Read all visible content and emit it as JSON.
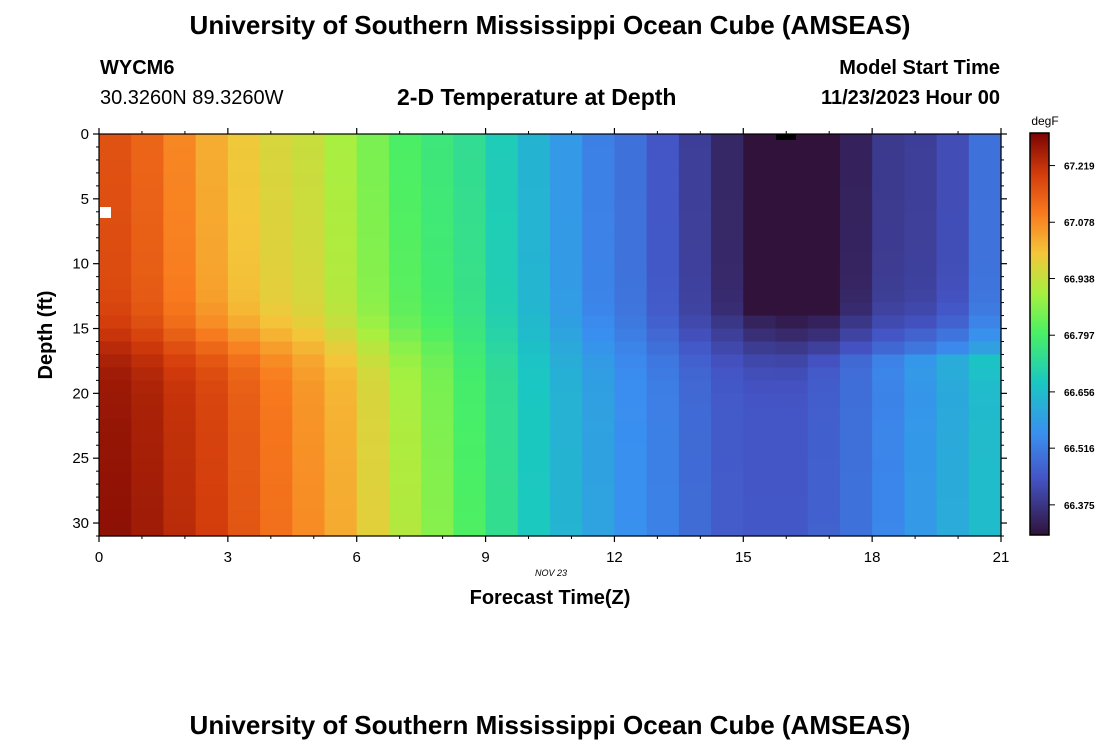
{
  "header": {
    "title": "University of Southern Mississippi Ocean Cube (AMSEAS)",
    "station_id": "WYCM6",
    "coords": "30.3260N  89.3260W",
    "plot_title": "2-D Temperature at Depth",
    "model_start_label": "Model Start Time",
    "model_start_value": "11/23/2023 Hour 00"
  },
  "footer": {
    "title": "University of Southern Mississippi Ocean Cube (AMSEAS)"
  },
  "chart_data": {
    "type": "heatmap",
    "title": "2-D Temperature at Depth",
    "xlabel": "Forecast Time(Z)",
    "ylabel": "Depth (ft)",
    "date_label": "NOV 23",
    "x_ticks": [
      0,
      3,
      6,
      9,
      12,
      15,
      18,
      21
    ],
    "y_ticks": [
      0,
      5,
      10,
      15,
      20,
      25,
      30
    ],
    "xlim": [
      0,
      21
    ],
    "ylim": [
      0,
      31
    ],
    "unit": "degF",
    "colorbar_ticks": [
      "67.219",
      "67.078",
      "66.938",
      "66.797",
      "66.656",
      "66.516",
      "66.375"
    ],
    "vmin": 66.3,
    "vmax": 67.3,
    "columns": 28,
    "rows": 31,
    "profile_time_hours": [
      0,
      0.75,
      1.5,
      2.25,
      3,
      3.75,
      4.5,
      5.25,
      6,
      6.75,
      7.5,
      8.25,
      9,
      9.75,
      10.5,
      11.25,
      12,
      12.75,
      13.5,
      14.25,
      15,
      15.75,
      16.5,
      17.25,
      18,
      18.75,
      19.5,
      20.25
    ],
    "temp_upper_degF": [
      67.18,
      67.15,
      67.1,
      67.05,
      67.01,
      66.98,
      66.96,
      66.92,
      66.87,
      66.82,
      66.79,
      66.76,
      66.7,
      66.64,
      66.58,
      66.53,
      66.5,
      66.45,
      66.4,
      66.36,
      66.31,
      66.29,
      66.3,
      66.35,
      66.39,
      66.4,
      66.43,
      66.5
    ],
    "temp_lower_degF": [
      67.26,
      67.24,
      67.21,
      67.18,
      67.14,
      67.1,
      67.06,
      67.02,
      66.96,
      66.9,
      66.85,
      66.79,
      66.74,
      66.68,
      66.63,
      66.59,
      66.55,
      66.52,
      66.48,
      66.45,
      66.44,
      66.44,
      66.46,
      66.49,
      66.53,
      66.57,
      66.61,
      66.65
    ]
  }
}
